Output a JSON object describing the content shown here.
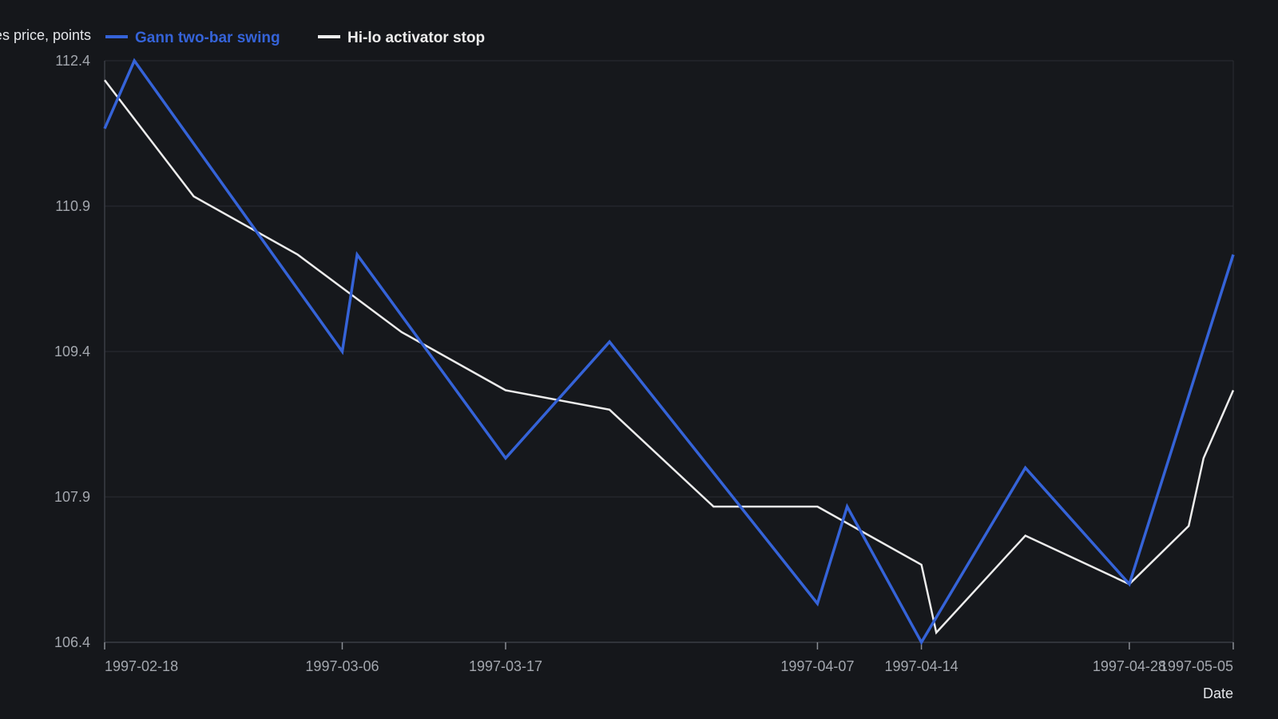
{
  "chart_data": {
    "type": "line",
    "ylabel": "Futures price, points",
    "xlabel": "Date",
    "ylim": [
      106.4,
      112.4
    ],
    "yticks": [
      106.4,
      107.9,
      109.4,
      110.9,
      112.4
    ],
    "xlim": [
      "1997-02-18",
      "1997-05-05"
    ],
    "xticks": [
      "1997-02-18",
      "1997-03-06",
      "1997-03-17",
      "1997-04-07",
      "1997-04-14",
      "1997-04-28",
      "1997-05-05"
    ],
    "grid": true,
    "legend": "top-left",
    "colors": {
      "background": "#15171b",
      "plot": "#16181c",
      "grid": "#2a2d33",
      "axis": "#3a3d44"
    },
    "series": [
      {
        "name": "Gann two-bar swing",
        "color": "#3563d8",
        "points": [
          [
            "1997-02-18",
            111.7
          ],
          [
            "1997-02-20",
            112.4
          ],
          [
            "1997-03-06",
            109.4
          ],
          [
            "1997-03-07",
            110.4
          ],
          [
            "1997-03-17",
            108.3
          ],
          [
            "1997-03-24",
            109.5
          ],
          [
            "1997-04-07",
            106.8
          ],
          [
            "1997-04-09",
            107.8
          ],
          [
            "1997-04-14",
            106.4
          ],
          [
            "1997-04-21",
            108.2
          ],
          [
            "1997-04-28",
            107.0
          ],
          [
            "1997-05-05",
            110.4
          ]
        ]
      },
      {
        "name": "Hi-lo activator stop",
        "color": "#ececec",
        "points": [
          [
            "1997-02-18",
            112.2
          ],
          [
            "1997-02-24",
            111.0
          ],
          [
            "1997-03-03",
            110.4
          ],
          [
            "1997-03-10",
            109.6
          ],
          [
            "1997-03-17",
            109.0
          ],
          [
            "1997-03-24",
            108.8
          ],
          [
            "1997-03-31",
            107.8
          ],
          [
            "1997-04-07",
            107.8
          ],
          [
            "1997-04-14",
            107.2
          ],
          [
            "1997-04-15",
            106.5
          ],
          [
            "1997-04-21",
            107.5
          ],
          [
            "1997-04-28",
            107.0
          ],
          [
            "1997-05-02",
            107.6
          ],
          [
            "1997-05-03",
            108.3
          ],
          [
            "1997-05-05",
            109.0
          ]
        ]
      }
    ]
  }
}
